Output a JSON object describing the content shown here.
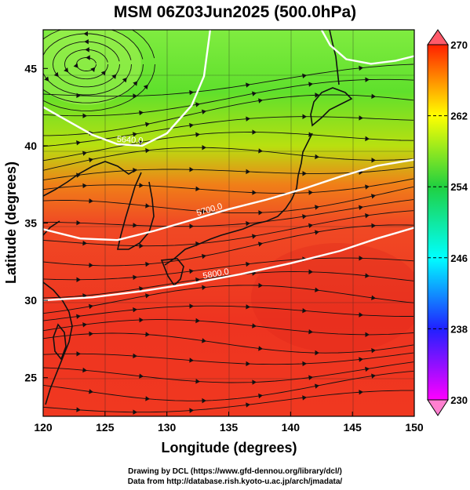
{
  "chart_data": {
    "type": "heatmap",
    "title": "MSM 06Z03Jun2025 (500.0hPa)",
    "xlabel": "Longitude (degrees)",
    "ylabel": "Latitude  (degrees)",
    "xlim": [
      120,
      150
    ],
    "ylim": [
      22.5,
      47.5
    ],
    "xticks": [
      "120",
      "125",
      "130",
      "135",
      "140",
      "145",
      "150"
    ],
    "yticks": [
      "25",
      "30",
      "35",
      "40",
      "45"
    ],
    "colorbar": {
      "min": 230,
      "max": 270,
      "ticks": [
        "230",
        "238",
        "246",
        "254",
        "262",
        "270"
      ],
      "colors": [
        "#ff00ff",
        "#2020ff",
        "#00ffff",
        "#20d040",
        "#ffff00",
        "#ff2000"
      ]
    },
    "contours": [
      {
        "label": "5640.0",
        "points": [
          [
            120,
            42.5
          ],
          [
            122,
            41.6
          ],
          [
            124,
            40.7
          ],
          [
            126,
            40.1
          ],
          [
            128,
            40.0
          ],
          [
            130,
            40.8
          ],
          [
            132,
            42.6
          ],
          [
            133,
            44.5
          ],
          [
            133.5,
            47.5
          ]
        ]
      },
      {
        "label": "5700.0",
        "points": [
          [
            120,
            34.6
          ],
          [
            123,
            34.0
          ],
          [
            126,
            33.9
          ],
          [
            129,
            34.5
          ],
          [
            132,
            35.2
          ],
          [
            135,
            35.9
          ],
          [
            138,
            36.5
          ],
          [
            141,
            37.2
          ],
          [
            144,
            38.0
          ],
          [
            147,
            38.7
          ],
          [
            150,
            39.1
          ]
        ]
      },
      {
        "label": "5800.0",
        "points": [
          [
            120,
            30.0
          ],
          [
            124,
            30.2
          ],
          [
            128,
            30.6
          ],
          [
            132,
            31.1
          ],
          [
            136,
            31.7
          ],
          [
            140,
            32.4
          ],
          [
            144,
            33.2
          ],
          [
            147,
            34.0
          ],
          [
            150,
            34.7
          ]
        ]
      },
      {
        "label": "",
        "points": [
          [
            142.5,
            47.5
          ],
          [
            143.2,
            46.5
          ],
          [
            144.5,
            45.6
          ],
          [
            146.5,
            45.3
          ],
          [
            148.5,
            45.5
          ],
          [
            150,
            45.8
          ]
        ]
      }
    ],
    "annotations": [
      "5640.0",
      "5700.0",
      "5800.0"
    ],
    "credits": [
      "Drawing by DCL (https://www.gfd-dennou.org/library/dcl/)",
      "Data from http://database.rish.kyoto-u.ac.jp/arch/jmadata/"
    ]
  }
}
